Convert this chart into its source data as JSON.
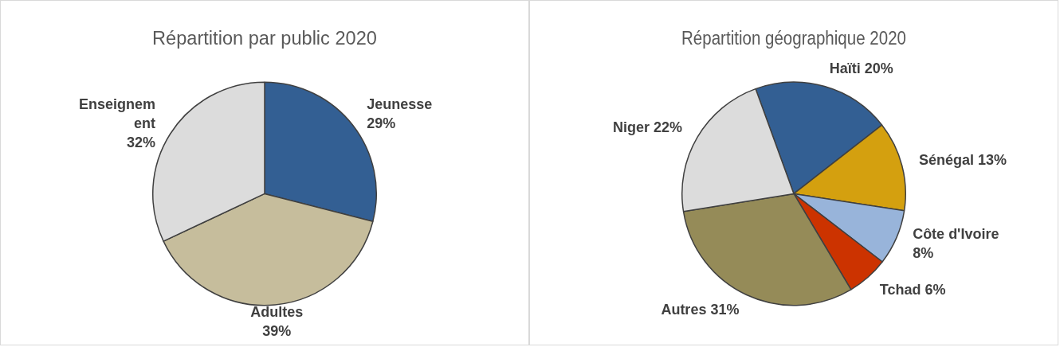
{
  "chart_data": [
    {
      "type": "pie",
      "title": "Répartition par public 2020",
      "categories": [
        "Jeunesse",
        "Adultes",
        "Enseignement"
      ],
      "values": [
        29,
        39,
        32
      ],
      "colors": [
        "#335f93",
        "#c6bd9c",
        "#dcdcdc"
      ],
      "value_labels": [
        "29%",
        "39%",
        "32%"
      ],
      "legend": false
    },
    {
      "type": "pie",
      "title": "Répartition géographique 2020",
      "categories": [
        "Haïti",
        "Sénégal",
        "Côte d'Ivoire",
        "Tchad",
        "Autres",
        "Niger"
      ],
      "values": [
        20,
        13,
        8,
        6,
        31,
        22
      ],
      "colors": [
        "#335f93",
        "#d4a00f",
        "#98b4da",
        "#cc3300",
        "#958b58",
        "#dcdcdc"
      ],
      "value_labels": [
        "20%",
        "13%",
        "8%",
        "6%",
        "31%",
        "22%"
      ],
      "legend": false
    }
  ]
}
